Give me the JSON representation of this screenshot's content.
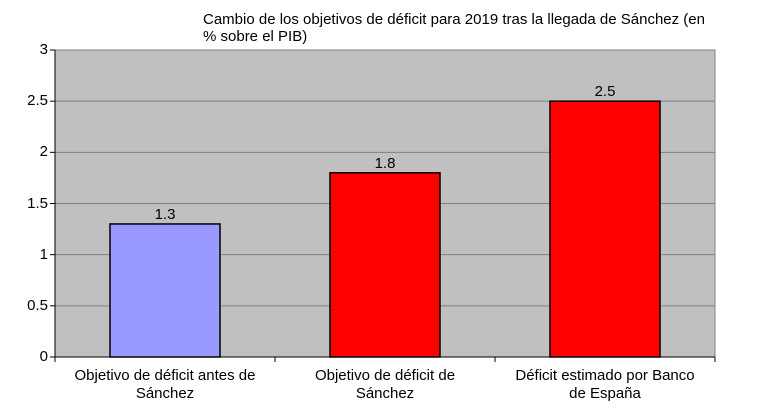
{
  "chart_data": {
    "type": "bar",
    "title_lines": [
      "Cambio de los objetivos de déficit para 2019 tras la llegada de Sánchez (en",
      "% sobre el PIB)"
    ],
    "categories": [
      [
        "Objetivo de déficit antes de",
        "Sánchez"
      ],
      [
        "Objetivo de déficit de",
        "Sánchez"
      ],
      [
        "Déficit estimado por Banco",
        "de España"
      ]
    ],
    "values": [
      1.3,
      1.8,
      2.5
    ],
    "data_labels": [
      "1.3",
      "1.8",
      "2.5"
    ],
    "bar_colors": [
      "#9999ff",
      "#ff0000",
      "#ff0000"
    ],
    "plot_background": "#c0c0c0",
    "gridline_color": "#808080",
    "ylim": [
      0,
      3
    ],
    "yticks": [
      0,
      0.5,
      1,
      1.5,
      2,
      2.5,
      3
    ],
    "ytick_labels": [
      "0",
      "0.5",
      "1",
      "1.5",
      "2",
      "2.5",
      "3"
    ],
    "xlabel": "",
    "ylabel": "",
    "legend": "none"
  }
}
